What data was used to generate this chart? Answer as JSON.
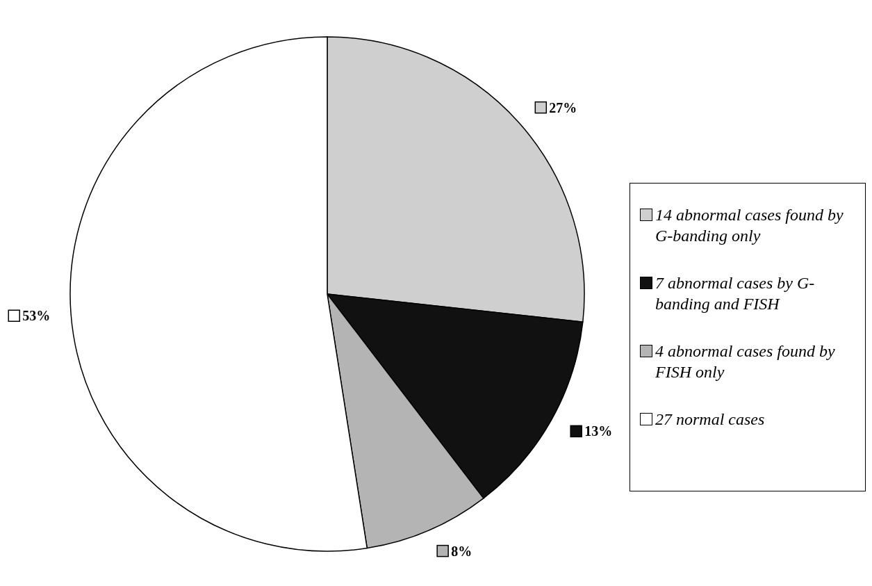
{
  "chart_data": {
    "type": "pie",
    "categories": [
      "14 abnormal cases found by G-banding only",
      "7 abnormal cases by G-banding and FISH",
      "4 abnormal cases found by FISH only",
      "27 normal cases"
    ],
    "values": [
      27,
      13,
      8,
      53
    ],
    "colors": [
      "#cfcfcf",
      "#111111",
      "#b4b4b4",
      "#ffffff"
    ],
    "value_labels": [
      "27%",
      "13%",
      "8%",
      "53%"
    ],
    "legend": "right"
  }
}
